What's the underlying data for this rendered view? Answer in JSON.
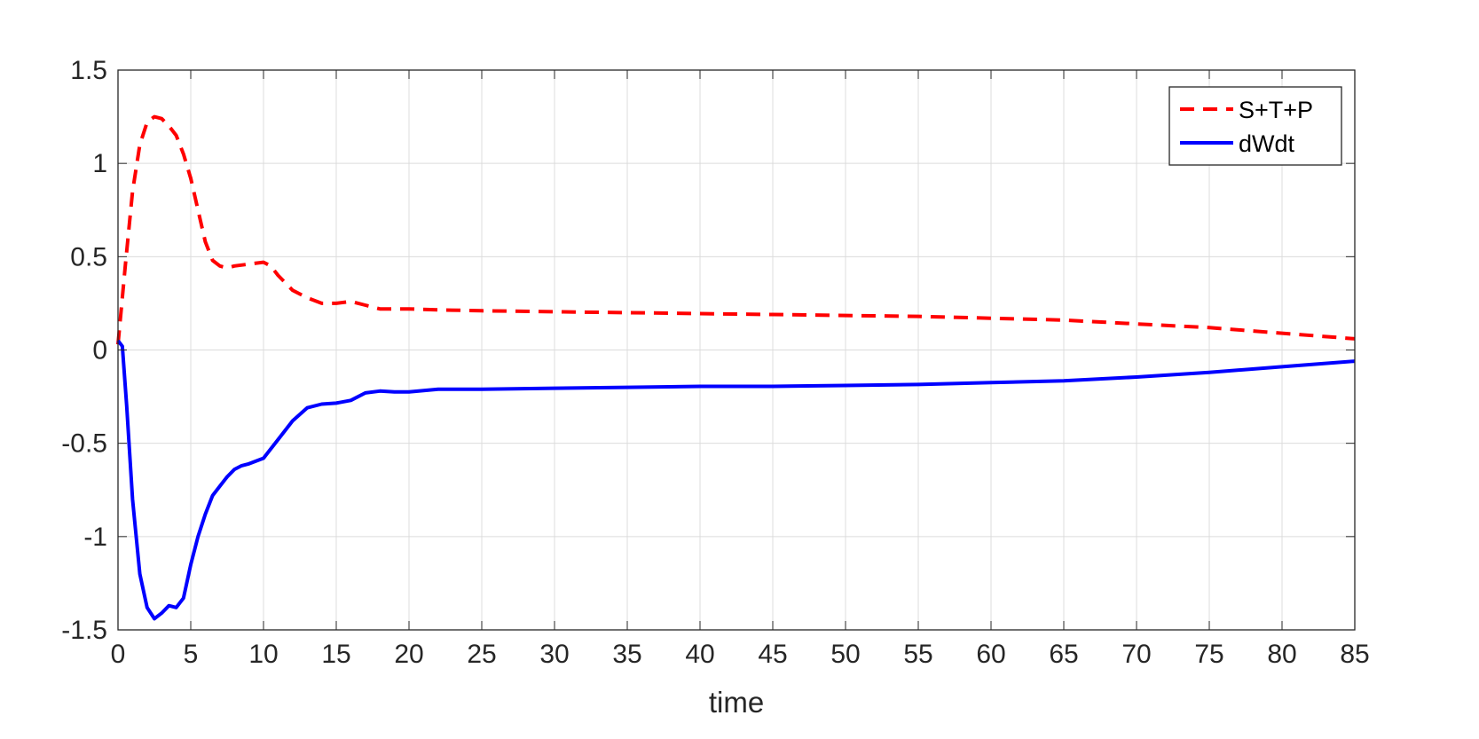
{
  "chart_data": {
    "type": "line",
    "title": "",
    "xlabel": "time",
    "ylabel": "",
    "xlim": [
      0,
      85
    ],
    "ylim": [
      -1.5,
      1.5
    ],
    "x_ticks": [
      0,
      5,
      10,
      15,
      20,
      25,
      30,
      35,
      40,
      45,
      50,
      55,
      60,
      65,
      70,
      75,
      80,
      85
    ],
    "y_ticks": [
      -1.5,
      -1,
      -0.5,
      0,
      0.5,
      1,
      1.5
    ],
    "x_tick_labels": [
      "0",
      "5",
      "10",
      "15",
      "20",
      "25",
      "30",
      "35",
      "40",
      "45",
      "50",
      "55",
      "60",
      "65",
      "70",
      "75",
      "80",
      "85"
    ],
    "y_tick_labels": [
      "-1.5",
      "-1",
      "-0.5",
      "0",
      "0.5",
      "1",
      "1.5"
    ],
    "grid": true,
    "legend_position": "top-right",
    "series": [
      {
        "name": "S+T+P",
        "color": "#ff0000",
        "style": "dashed",
        "x": [
          0,
          0.5,
          1,
          1.5,
          2,
          2.5,
          3,
          3.5,
          4,
          4.5,
          5,
          5.5,
          6,
          6.5,
          7,
          7.5,
          8,
          9,
          10,
          10.5,
          11,
          12,
          13,
          14,
          15,
          16,
          17,
          18,
          19,
          20,
          22,
          25,
          30,
          35,
          40,
          45,
          50,
          55,
          60,
          65,
          70,
          75,
          80,
          85
        ],
        "y": [
          0.03,
          0.45,
          0.85,
          1.1,
          1.22,
          1.25,
          1.24,
          1.2,
          1.15,
          1.05,
          0.92,
          0.75,
          0.58,
          0.48,
          0.45,
          0.44,
          0.45,
          0.46,
          0.47,
          0.45,
          0.4,
          0.32,
          0.28,
          0.25,
          0.25,
          0.26,
          0.24,
          0.22,
          0.22,
          0.22,
          0.215,
          0.21,
          0.205,
          0.2,
          0.195,
          0.19,
          0.185,
          0.18,
          0.17,
          0.16,
          0.14,
          0.12,
          0.09,
          0.06
        ]
      },
      {
        "name": "dWdt",
        "color": "#0000ff",
        "style": "solid",
        "x": [
          0,
          0.3,
          0.6,
          1,
          1.5,
          2,
          2.5,
          3,
          3.5,
          4,
          4.5,
          5,
          5.5,
          6,
          6.5,
          7,
          7.5,
          8,
          8.5,
          9,
          10,
          11,
          12,
          13,
          14,
          15,
          16,
          17,
          18,
          19,
          20,
          22,
          25,
          30,
          35,
          40,
          45,
          50,
          55,
          60,
          65,
          70,
          75,
          80,
          85
        ],
        "y": [
          0.05,
          0.02,
          -0.3,
          -0.8,
          -1.2,
          -1.38,
          -1.44,
          -1.41,
          -1.37,
          -1.38,
          -1.33,
          -1.15,
          -1.0,
          -0.88,
          -0.78,
          -0.73,
          -0.68,
          -0.64,
          -0.62,
          -0.61,
          -0.58,
          -0.48,
          -0.38,
          -0.31,
          -0.29,
          -0.285,
          -0.27,
          -0.23,
          -0.22,
          -0.225,
          -0.225,
          -0.21,
          -0.21,
          -0.205,
          -0.2,
          -0.195,
          -0.195,
          -0.19,
          -0.185,
          -0.175,
          -0.165,
          -0.145,
          -0.12,
          -0.09,
          -0.06
        ]
      }
    ]
  }
}
